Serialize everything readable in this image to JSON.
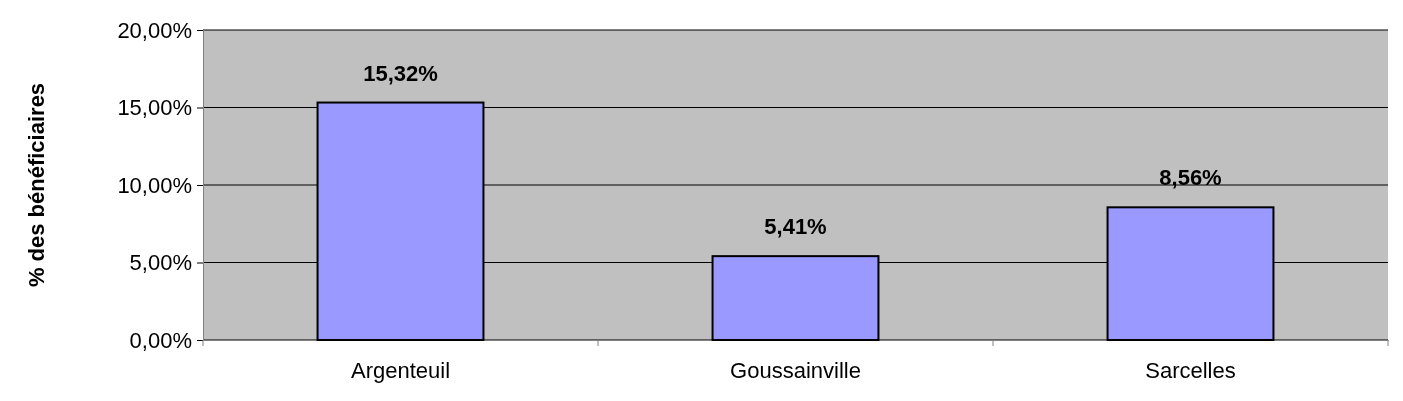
{
  "chart_data": {
    "type": "bar",
    "ylabel": "% des bénéficiaires",
    "categories": [
      "Argenteuil",
      "Goussainville",
      "Sarcelles"
    ],
    "values": [
      15.32,
      5.41,
      8.56
    ],
    "color": "#9999ff",
    "value_labels": [
      "15,32%",
      "5,41%",
      "8,56%"
    ],
    "ylim": [
      0,
      20
    ],
    "yticks": [
      {
        "value": 0,
        "label": "0,00%"
      },
      {
        "value": 5,
        "label": "5,00%"
      },
      {
        "value": 10,
        "label": "10,00%"
      },
      {
        "value": 15,
        "label": "15,00%"
      },
      {
        "value": 20,
        "label": "20,00%"
      }
    ],
    "grid": "y"
  }
}
